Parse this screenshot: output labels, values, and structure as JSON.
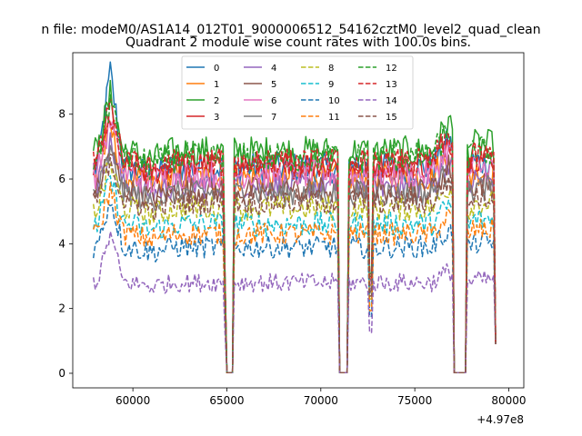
{
  "chart_data": {
    "type": "line",
    "suptitle": "n file: modeM0/AS1A14_012T01_9000006512_54162cztM0_level2_quad_clean",
    "title": "Quadrant 2 module wise count rates with 100.0s bins.",
    "xlabel": "",
    "ylabel": "",
    "x_offset_label": "+4.97e8",
    "xlim": [
      56800,
      80800
    ],
    "ylim": [
      -0.45,
      9.9
    ],
    "x_ticks": [
      60000,
      65000,
      70000,
      75000,
      80000
    ],
    "x_tick_labels": [
      "60000",
      "65000",
      "70000",
      "75000",
      "80000"
    ],
    "y_ticks": [
      0,
      2,
      4,
      6,
      8
    ],
    "y_tick_labels": [
      "0",
      "2",
      "4",
      "6",
      "8"
    ],
    "grid": false,
    "legend_position": "top-center",
    "legend_columns": 4,
    "x_start": 57900,
    "x_end": 79300,
    "gaps": [
      [
        65000,
        65300
      ],
      [
        71000,
        71400
      ],
      [
        77100,
        77700
      ]
    ],
    "dip_times": [
      64900,
      72650
    ],
    "series": [
      {
        "name": "0",
        "color": "#1f77b4",
        "dash": "solid",
        "base": 6.35,
        "amp": 0.3,
        "peak": 9.3
      },
      {
        "name": "1",
        "color": "#ff7f0e",
        "dash": "solid",
        "base": 6.05,
        "amp": 0.28,
        "peak": 7.6
      },
      {
        "name": "2",
        "color": "#2ca02c",
        "dash": "solid",
        "base": 6.85,
        "amp": 0.3,
        "peak": 8.6
      },
      {
        "name": "3",
        "color": "#d62728",
        "dash": "solid",
        "base": 6.45,
        "amp": 0.28,
        "peak": 8.3
      },
      {
        "name": "4",
        "color": "#9467bd",
        "dash": "solid",
        "base": 5.8,
        "amp": 0.26,
        "peak": 7.1
      },
      {
        "name": "5",
        "color": "#8c564b",
        "dash": "solid",
        "base": 5.65,
        "amp": 0.26,
        "peak": 6.9
      },
      {
        "name": "6",
        "color": "#e377c2",
        "dash": "solid",
        "base": 6.15,
        "amp": 0.28,
        "peak": 7.8
      },
      {
        "name": "7",
        "color": "#7f7f7f",
        "dash": "solid",
        "base": 5.55,
        "amp": 0.25,
        "peak": 6.8
      },
      {
        "name": "8",
        "color": "#bcbd22",
        "dash": "dashed",
        "base": 5.1,
        "amp": 0.25,
        "peak": 6.5
      },
      {
        "name": "9",
        "color": "#17becf",
        "dash": "dashed",
        "base": 4.6,
        "amp": 0.24,
        "peak": 6.0
      },
      {
        "name": "10",
        "color": "#1f77b4",
        "dash": "dashed",
        "base": 3.9,
        "amp": 0.22,
        "peak": 5.4
      },
      {
        "name": "11",
        "color": "#ff7f0e",
        "dash": "dashed",
        "base": 4.3,
        "amp": 0.22,
        "peak": 5.7
      },
      {
        "name": "12",
        "color": "#2ca02c",
        "dash": "dashed",
        "base": 6.65,
        "amp": 0.3,
        "peak": 8.4
      },
      {
        "name": "13",
        "color": "#d62728",
        "dash": "dashed",
        "base": 6.5,
        "amp": 0.28,
        "peak": 8.1
      },
      {
        "name": "14",
        "color": "#9467bd",
        "dash": "dashed",
        "base": 2.8,
        "amp": 0.18,
        "peak": 4.3
      },
      {
        "name": "15",
        "color": "#8c564b",
        "dash": "dashed",
        "base": 5.3,
        "amp": 0.25,
        "peak": 6.7
      }
    ]
  }
}
